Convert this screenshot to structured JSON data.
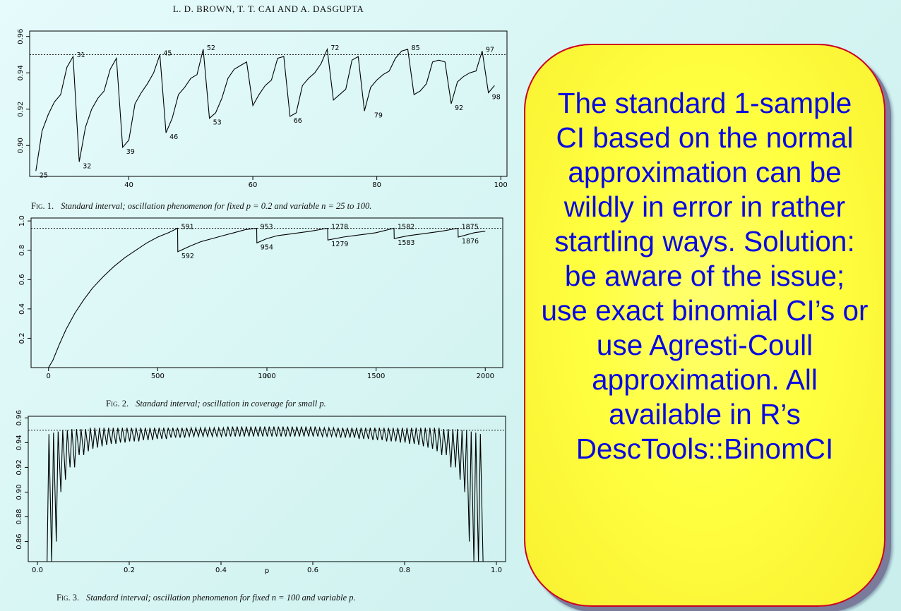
{
  "header": "L. D. BROWN, T. T. CAI AND A. DASGUPTA",
  "callout_text": "The standard 1-sample CI based on the normal approximation can be wildly in error in rather startling ways. Solution: be aware of the issue; use exact binomial CI’s or use Agresti-Coull approximation.  All available in R’s DescTools::BinomCI",
  "figures": [
    {
      "caption_label": "Fig. 1.",
      "caption_text": "Standard interval; oscillation phenomenon for fixed  p = 0.2 and variable  n = 25 to 100."
    },
    {
      "caption_label": "Fig. 2.",
      "caption_text": "Standard interval; oscillation in coverage for small  p."
    },
    {
      "caption_label": "Fig. 3.",
      "caption_text": "Standard interval; oscillation phenomenon for fixed  n = 100 and variable  p."
    }
  ],
  "chart_data": [
    {
      "type": "line",
      "xlim": [
        24,
        101
      ],
      "ylim": [
        0.883,
        0.963
      ],
      "xticks": [
        "40",
        "60",
        "80",
        "100"
      ],
      "xtick_values": [
        40,
        60,
        80,
        100
      ],
      "yticks": [
        "0.90",
        "0.92",
        "0.94",
        "0.96"
      ],
      "ytick_values": [
        0.9,
        0.92,
        0.94,
        0.96
      ],
      "reference_line": 0.95,
      "grid": false,
      "series": [
        {
          "x": [
            25,
            26,
            27,
            28,
            29,
            30,
            31,
            32,
            33,
            34,
            35,
            36,
            37,
            38,
            39,
            40,
            41,
            42,
            43,
            44,
            45,
            46,
            47,
            48,
            49,
            50,
            51,
            52,
            53,
            54,
            55,
            56,
            57,
            58,
            59,
            60,
            61,
            62,
            63,
            64,
            65,
            66,
            67,
            68,
            69,
            70,
            71,
            72,
            73,
            74,
            75,
            76,
            77,
            78,
            79,
            80,
            81,
            82,
            83,
            84,
            85,
            86,
            87,
            88,
            89,
            90,
            91,
            92,
            93,
            94,
            95,
            96,
            97,
            98,
            99
          ],
          "y": [
            0.886,
            0.908,
            0.917,
            0.924,
            0.928,
            0.943,
            0.949,
            0.891,
            0.91,
            0.92,
            0.926,
            0.93,
            0.942,
            0.948,
            0.899,
            0.903,
            0.923,
            0.929,
            0.934,
            0.94,
            0.95,
            0.907,
            0.915,
            0.928,
            0.932,
            0.937,
            0.939,
            0.953,
            0.915,
            0.918,
            0.926,
            0.937,
            0.942,
            0.944,
            0.946,
            0.922,
            0.928,
            0.933,
            0.936,
            0.948,
            0.949,
            0.916,
            0.918,
            0.933,
            0.937,
            0.94,
            0.945,
            0.953,
            0.925,
            0.928,
            0.931,
            0.947,
            0.949,
            0.919,
            0.932,
            0.936,
            0.939,
            0.941,
            0.948,
            0.952,
            0.953,
            0.928,
            0.93,
            0.934,
            0.946,
            0.947,
            0.946,
            0.923,
            0.935,
            0.938,
            0.94,
            0.941,
            0.952,
            0.929,
            0.933
          ]
        }
      ],
      "point_labels": [
        {
          "x": 25,
          "y": 0.886,
          "text": "25"
        },
        {
          "x": 31,
          "y": 0.949,
          "text": "31"
        },
        {
          "x": 32,
          "y": 0.891,
          "text": "32"
        },
        {
          "x": 39,
          "y": 0.899,
          "text": "39"
        },
        {
          "x": 45,
          "y": 0.95,
          "text": "45"
        },
        {
          "x": 46,
          "y": 0.907,
          "text": "46"
        },
        {
          "x": 52,
          "y": 0.953,
          "text": "52"
        },
        {
          "x": 53,
          "y": 0.915,
          "text": "53"
        },
        {
          "x": 66,
          "y": 0.916,
          "text": "66"
        },
        {
          "x": 72,
          "y": 0.953,
          "text": "72"
        },
        {
          "x": 79,
          "y": 0.919,
          "text": "79"
        },
        {
          "x": 85,
          "y": 0.953,
          "text": "85"
        },
        {
          "x": 92,
          "y": 0.923,
          "text": "92"
        },
        {
          "x": 97,
          "y": 0.952,
          "text": "97"
        },
        {
          "x": 98,
          "y": 0.929,
          "text": "98"
        }
      ]
    },
    {
      "type": "line",
      "xlim": [
        -80,
        2080
      ],
      "ylim": [
        0,
        1.02
      ],
      "xlabel": "n",
      "xticks": [
        "0",
        "500",
        "1000",
        "1500",
        "2000"
      ],
      "xtick_values": [
        0,
        500,
        1000,
        1500,
        2000
      ],
      "yticks": [
        "0.2",
        "0.4",
        "0.6",
        "0.8",
        "1.0"
      ],
      "ytick_values": [
        0.2,
        0.4,
        0.6,
        0.8,
        1.0
      ],
      "reference_line": 0.95,
      "grid": false,
      "series": [
        {
          "x": [
            0,
            20,
            50,
            80,
            120,
            160,
            200,
            250,
            300,
            350,
            400,
            450,
            500,
            550,
            591,
            592,
            650,
            700,
            750,
            800,
            850,
            900,
            953,
            954,
            1000,
            1050,
            1100,
            1150,
            1200,
            1278,
            1279,
            1350,
            1400,
            1450,
            1500,
            1582,
            1583,
            1650,
            1700,
            1750,
            1800,
            1875,
            1876,
            1950,
            2000
          ],
          "y": [
            0.0,
            0.05,
            0.16,
            0.26,
            0.37,
            0.46,
            0.54,
            0.62,
            0.69,
            0.75,
            0.8,
            0.85,
            0.89,
            0.92,
            0.95,
            0.79,
            0.83,
            0.86,
            0.88,
            0.9,
            0.92,
            0.94,
            0.95,
            0.85,
            0.88,
            0.9,
            0.91,
            0.92,
            0.93,
            0.95,
            0.87,
            0.89,
            0.9,
            0.91,
            0.92,
            0.95,
            0.88,
            0.9,
            0.91,
            0.92,
            0.93,
            0.95,
            0.89,
            0.92,
            0.93
          ]
        }
      ],
      "point_labels": [
        {
          "x": 591,
          "y": 0.95,
          "text": "591"
        },
        {
          "x": 592,
          "y": 0.79,
          "text": "592"
        },
        {
          "x": 953,
          "y": 0.95,
          "text": "953"
        },
        {
          "x": 954,
          "y": 0.85,
          "text": "954"
        },
        {
          "x": 1278,
          "y": 0.95,
          "text": "1278"
        },
        {
          "x": 1279,
          "y": 0.87,
          "text": "1279"
        },
        {
          "x": 1582,
          "y": 0.95,
          "text": "1582"
        },
        {
          "x": 1583,
          "y": 0.88,
          "text": "1583"
        },
        {
          "x": 1875,
          "y": 0.95,
          "text": "1875"
        },
        {
          "x": 1876,
          "y": 0.89,
          "text": "1876"
        }
      ]
    },
    {
      "type": "line",
      "xlim": [
        -0.02,
        1.02
      ],
      "ylim": [
        0.8438,
        0.9613
      ],
      "xlabel": "p",
      "xticks": [
        "0.0",
        "0.2",
        "0.4",
        "0.6",
        "0.8",
        "1.0"
      ],
      "xtick_values": [
        0.0,
        0.2,
        0.4,
        0.6,
        0.8,
        1.0
      ],
      "yticks": [
        "0.86",
        "0.88",
        "0.90",
        "0.92",
        "0.94",
        "0.96"
      ],
      "ytick_values": [
        0.86,
        0.88,
        0.9,
        0.92,
        0.94,
        0.96
      ],
      "reference_line": 0.95,
      "grid": false,
      "series": [
        {
          "x": [
            0.015,
            0.025,
            0.035,
            0.045,
            0.055,
            0.065,
            0.075,
            0.085,
            0.095,
            0.105,
            0.115,
            0.125,
            0.135,
            0.145,
            0.155,
            0.165,
            0.175,
            0.185,
            0.195,
            0.205,
            0.215,
            0.225,
            0.235,
            0.245,
            0.255,
            0.265,
            0.275,
            0.285,
            0.295,
            0.305,
            0.315,
            0.325,
            0.335,
            0.345,
            0.355,
            0.365,
            0.375,
            0.385,
            0.395,
            0.405,
            0.415,
            0.425,
            0.435,
            0.445,
            0.455,
            0.465,
            0.475,
            0.485,
            0.495,
            0.505,
            0.515,
            0.525,
            0.535,
            0.545,
            0.555,
            0.565,
            0.575,
            0.585,
            0.595,
            0.605,
            0.615,
            0.625,
            0.635,
            0.645,
            0.655,
            0.665,
            0.675,
            0.685,
            0.695,
            0.705,
            0.715,
            0.725,
            0.735,
            0.745,
            0.755,
            0.765,
            0.775,
            0.785,
            0.795,
            0.805,
            0.815,
            0.825,
            0.835,
            0.845,
            0.855,
            0.865,
            0.875,
            0.885,
            0.895,
            0.905,
            0.915,
            0.925,
            0.935,
            0.945,
            0.955,
            0.965,
            0.975,
            0.985
          ],
          "low": [
            0.8,
            0.8,
            0.8,
            0.86,
            0.9,
            0.91,
            0.92,
            0.92,
            0.93,
            0.93,
            0.933,
            0.935,
            0.936,
            0.937,
            0.938,
            0.939,
            0.939,
            0.94,
            0.94,
            0.941,
            0.941,
            0.941,
            0.942,
            0.942,
            0.942,
            0.943,
            0.943,
            0.943,
            0.944,
            0.944,
            0.944,
            0.944,
            0.945,
            0.945,
            0.945,
            0.945,
            0.945,
            0.945,
            0.945,
            0.945,
            0.945,
            0.945,
            0.945,
            0.945,
            0.945,
            0.945,
            0.945,
            0.945,
            0.945,
            0.945,
            0.945,
            0.945,
            0.945,
            0.945,
            0.945,
            0.945,
            0.945,
            0.945,
            0.945,
            0.945,
            0.945,
            0.945,
            0.945,
            0.945,
            0.945,
            0.944,
            0.944,
            0.944,
            0.944,
            0.943,
            0.943,
            0.943,
            0.942,
            0.942,
            0.942,
            0.941,
            0.941,
            0.941,
            0.94,
            0.94,
            0.939,
            0.939,
            0.938,
            0.937,
            0.936,
            0.935,
            0.933,
            0.93,
            0.93,
            0.92,
            0.92,
            0.91,
            0.9,
            0.86,
            0.8,
            0.8,
            0.8,
            0.8
          ],
          "high": [
            0.8,
            0.947,
            0.948,
            0.949,
            0.95,
            0.95,
            0.951,
            0.951,
            0.951,
            0.951,
            0.952,
            0.952,
            0.952,
            0.952,
            0.952,
            0.952,
            0.952,
            0.952,
            0.952,
            0.952,
            0.952,
            0.952,
            0.952,
            0.952,
            0.952,
            0.952,
            0.952,
            0.952,
            0.952,
            0.952,
            0.952,
            0.952,
            0.952,
            0.952,
            0.952,
            0.952,
            0.952,
            0.952,
            0.952,
            0.952,
            0.953,
            0.953,
            0.953,
            0.953,
            0.953,
            0.953,
            0.953,
            0.953,
            0.953,
            0.953,
            0.953,
            0.953,
            0.953,
            0.953,
            0.953,
            0.953,
            0.953,
            0.953,
            0.953,
            0.953,
            0.952,
            0.952,
            0.952,
            0.952,
            0.952,
            0.952,
            0.952,
            0.952,
            0.952,
            0.952,
            0.952,
            0.952,
            0.952,
            0.952,
            0.952,
            0.952,
            0.952,
            0.952,
            0.952,
            0.952,
            0.952,
            0.952,
            0.952,
            0.952,
            0.952,
            0.952,
            0.952,
            0.951,
            0.951,
            0.951,
            0.951,
            0.95,
            0.95,
            0.949,
            0.948,
            0.947,
            0.8,
            0.8
          ]
        }
      ]
    }
  ]
}
